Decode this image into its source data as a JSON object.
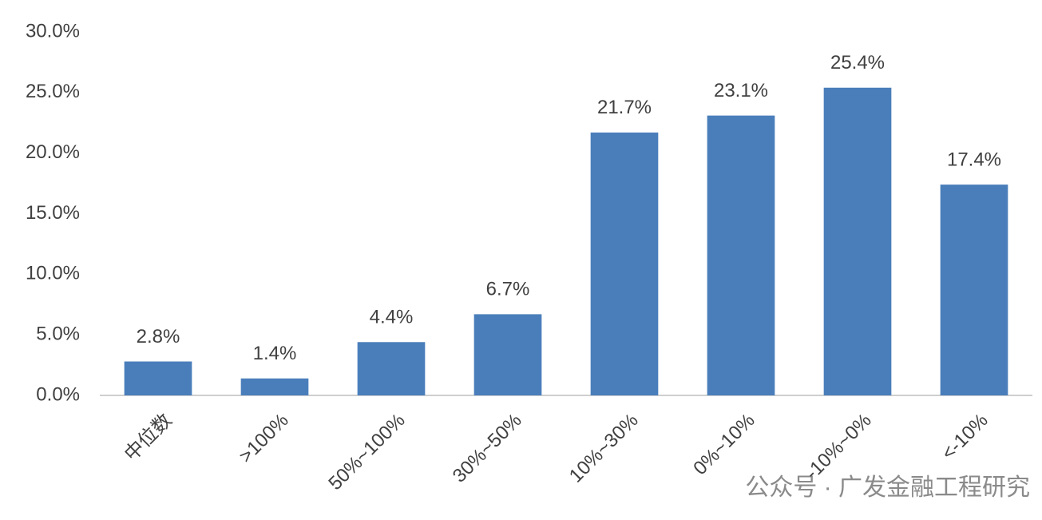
{
  "chart_data": {
    "type": "bar",
    "categories": [
      "中位数",
      ">100%",
      "50%~100%",
      "30%~50%",
      "10%~30%",
      "0%~10%",
      "-10%~0%",
      "<-10%"
    ],
    "values": [
      2.8,
      1.4,
      4.4,
      6.7,
      21.7,
      23.1,
      25.4,
      17.4
    ],
    "value_labels": [
      "2.8%",
      "1.4%",
      "4.4%",
      "6.7%",
      "21.7%",
      "23.1%",
      "25.4%",
      "17.4%"
    ],
    "color": "#4a7ebb",
    "ylim": [
      0,
      30
    ],
    "yticks": [
      {
        "value": 0,
        "label": "0.0%"
      },
      {
        "value": 5,
        "label": "5.0%"
      },
      {
        "value": 10,
        "label": "10.0%"
      },
      {
        "value": 15,
        "label": "15.0%"
      },
      {
        "value": 20,
        "label": "20.0%"
      },
      {
        "value": 25,
        "label": "25.0%"
      },
      {
        "value": 30,
        "label": "30.0%"
      }
    ],
    "grid": false,
    "watermark": "公众号 · 广发金融工程研究"
  }
}
